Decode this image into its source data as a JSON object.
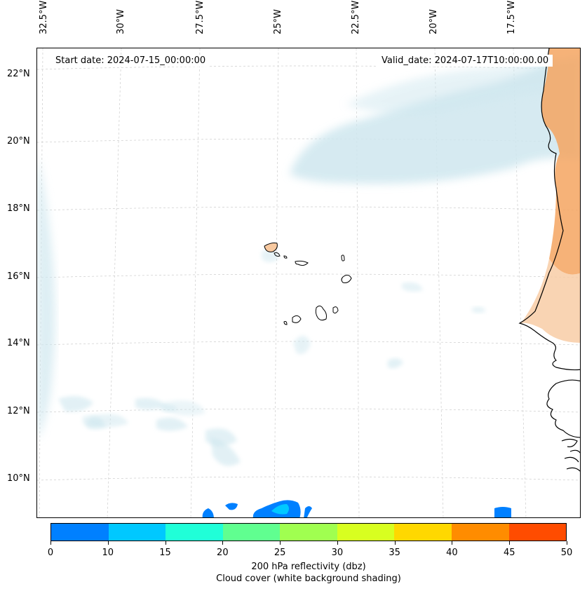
{
  "map": {
    "start_label": "Start date: 2024-07-15_00:00:00",
    "valid_label": "Valid_date: 2024-07-17T10:00:00.00",
    "lon_labels": [
      "32.5°W",
      "30°W",
      "27.5°W",
      "25°W",
      "22.5°W",
      "20°W",
      "17.5°W"
    ],
    "lat_labels": [
      "22°N",
      "20°N",
      "18°N",
      "16°N",
      "14°N",
      "12°N",
      "10°N"
    ]
  },
  "colorbar": {
    "ticks": [
      "0",
      "10",
      "15",
      "20",
      "25",
      "30",
      "35",
      "40",
      "45",
      "50"
    ],
    "colors": [
      "#0080ff",
      "#00c8ff",
      "#20ffd8",
      "#60ff90",
      "#a0ff50",
      "#d8ff20",
      "#ffd800",
      "#ff8c00",
      "#ff4c00"
    ],
    "label_line1": "200 hPa reflectivity (dbz)",
    "label_line2": "Cloud cover (white background shading)"
  },
  "colors": {
    "cloud": "#cfe7ef",
    "land_heat": "#f4a460",
    "coast": "#000000",
    "grid": "#cccccc"
  }
}
